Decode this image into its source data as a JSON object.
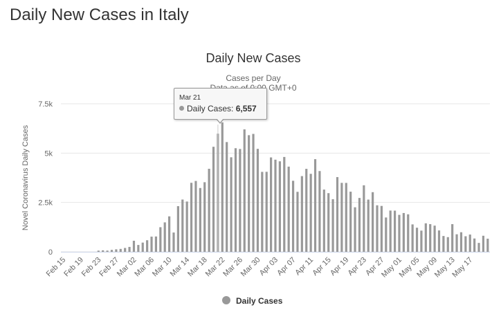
{
  "page": {
    "title": "Daily New Cases in Italy"
  },
  "tooltip": {
    "date": "Mar 21",
    "series": "Daily Cases",
    "value": "6,557"
  },
  "colors": {
    "bar": "#999999",
    "grid": "#e6e6e6",
    "axis_text": "#666666",
    "title": "#333333"
  },
  "chart_data": {
    "type": "bar",
    "title": "Daily New Cases",
    "subtitle": "Cases per Day",
    "subtitle2": "Data as of 0:00 GMT+0",
    "ylabel": "Novel Coronavirus Daily Cases",
    "xlabel": "",
    "ylim": [
      0,
      7500
    ],
    "yticks": [
      0,
      2500,
      5000,
      7500
    ],
    "ytick_labels": [
      "0",
      "2.5k",
      "5k",
      "7.5k"
    ],
    "grid": true,
    "legend_position": "bottom-center",
    "legend": [
      "Daily Cases"
    ],
    "series": [
      {
        "name": "Daily Cases",
        "values": [
          0,
          0,
          0,
          0,
          0,
          0,
          0,
          0,
          60,
          76,
          62,
          98,
          126,
          147,
          196,
          248,
          561,
          347,
          467,
          587,
          769,
          777,
          1247,
          1492,
          1797,
          977,
          2313,
          2648,
          2547,
          3497,
          3590,
          3233,
          3526,
          4207,
          5322,
          5986,
          6557,
          5560,
          4789,
          5249,
          5210,
          6203,
          5909,
          5974,
          5217,
          4050,
          4053,
          4782,
          4668,
          4585,
          4805,
          4316,
          3599,
          3039,
          3836,
          4204,
          3951,
          4694,
          4092,
          3153,
          2972,
          2667,
          3786,
          3493,
          3491,
          3047,
          2256,
          2729,
          3370,
          2646,
          3021,
          2357,
          2324,
          1739,
          2091,
          2086,
          1872,
          1965,
          1900,
          1389,
          1221,
          1075,
          1444,
          1402,
          1327,
          1083,
          802,
          744,
          1402,
          888,
          992,
          789,
          875,
          675,
          451,
          813,
          665
        ]
      }
    ],
    "xtick_labels": [
      "Feb 15",
      "Feb 19",
      "Feb 23",
      "Feb 27",
      "Mar 02",
      "Mar 06",
      "Mar 10",
      "Mar 14",
      "Mar 18",
      "Mar 22",
      "Mar 26",
      "Mar 30",
      "Apr 03",
      "Apr 07",
      "Apr 11",
      "Apr 15",
      "Apr 19",
      "Apr 23",
      "Apr 27",
      "May 01",
      "May 05",
      "May 09",
      "May 13",
      "May 17"
    ]
  }
}
